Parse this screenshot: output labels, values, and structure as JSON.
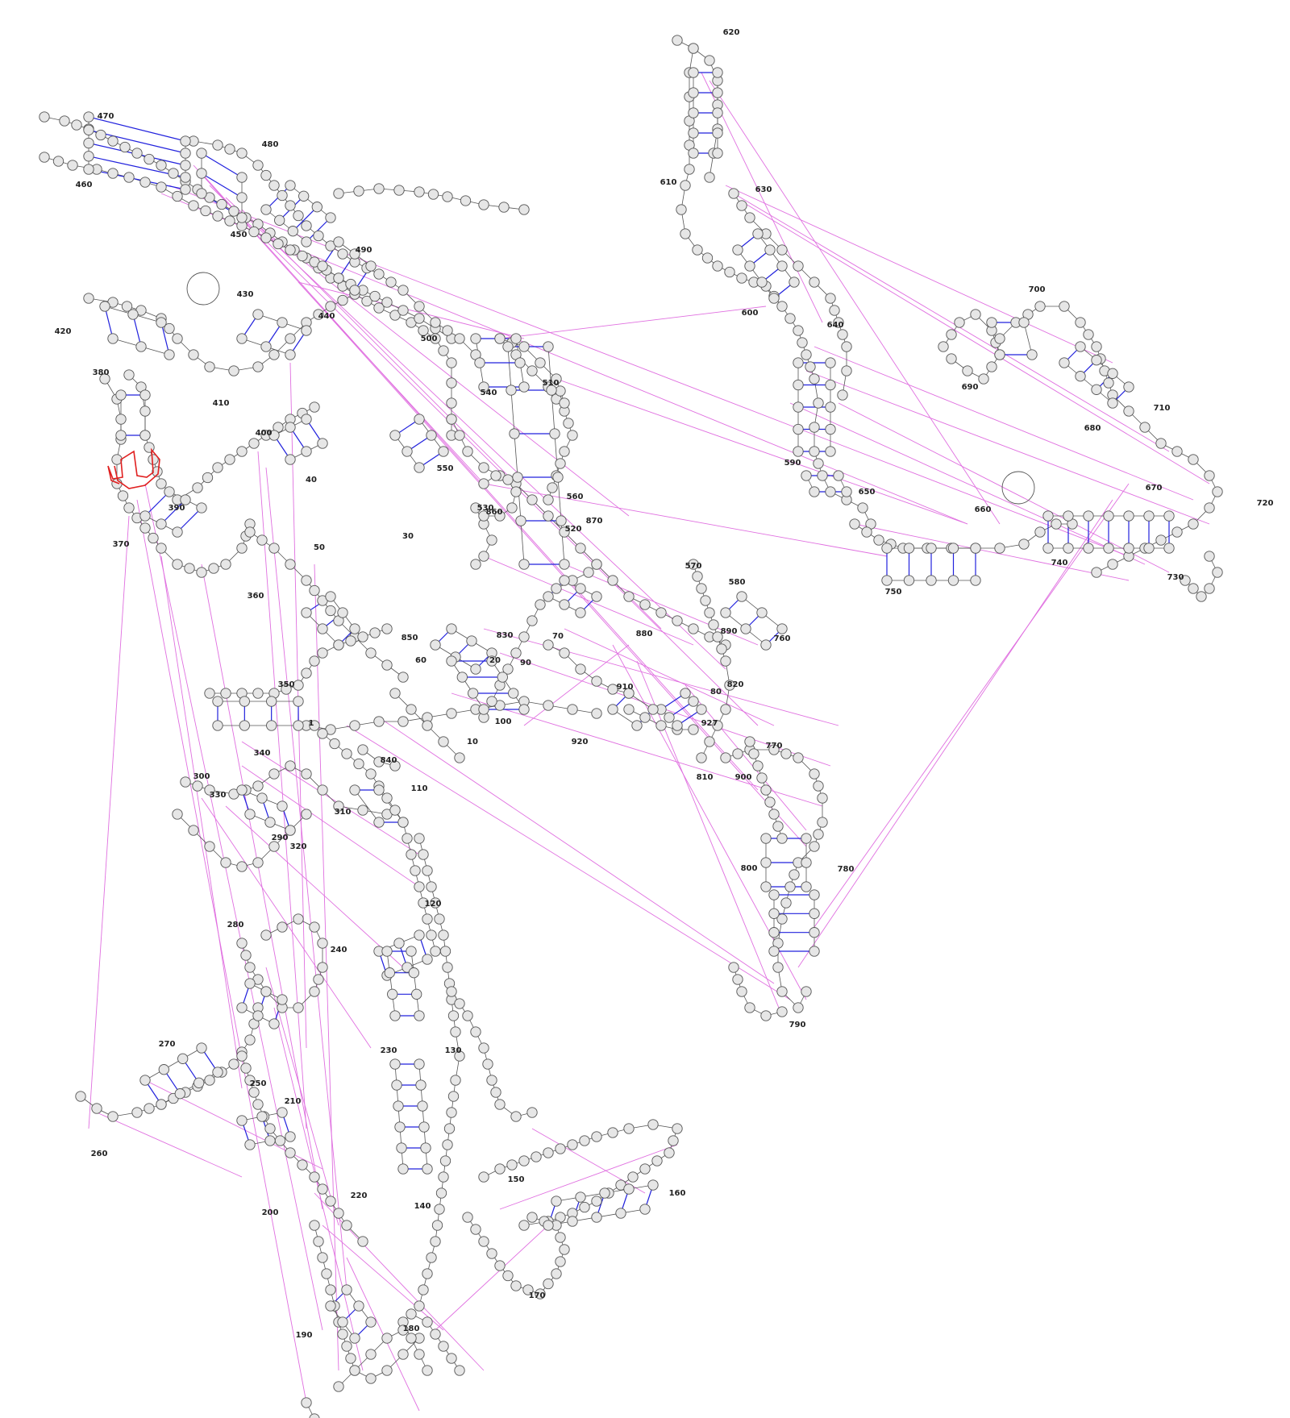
{
  "diagram": {
    "type": "rna-secondary-structure",
    "colors": {
      "nucleotide_fill": "#e6e6e6",
      "nucleotide_stroke": "#555555",
      "backbone": "#555555",
      "base_pair": "#2222dd",
      "pseudoknot": "#e070e0",
      "highlight": "#e02020"
    },
    "position_labels": [
      "1",
      "10",
      "20",
      "30",
      "40",
      "50",
      "60",
      "70",
      "80",
      "90",
      "100",
      "110",
      "120",
      "130",
      "140",
      "150",
      "160",
      "170",
      "180",
      "190",
      "200",
      "210",
      "220",
      "230",
      "240",
      "250",
      "260",
      "270",
      "280",
      "290",
      "300",
      "310",
      "320",
      "330",
      "340",
      "350",
      "360",
      "370",
      "380",
      "390",
      "400",
      "410",
      "420",
      "430",
      "440",
      "450",
      "460",
      "470",
      "480",
      "490",
      "500",
      "510",
      "520",
      "530",
      "540",
      "550",
      "560",
      "570",
      "580",
      "590",
      "600",
      "610",
      "620",
      "630",
      "640",
      "650",
      "660",
      "670",
      "680",
      "690",
      "700",
      "710",
      "720",
      "730",
      "740",
      "750",
      "760",
      "770",
      "780",
      "790",
      "800",
      "810",
      "820",
      "830",
      "840",
      "850",
      "860",
      "870",
      "880",
      "890",
      "900",
      "910",
      "920",
      "927"
    ]
  }
}
